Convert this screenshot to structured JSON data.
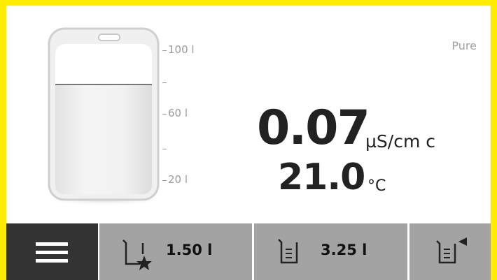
{
  "status": "Pure",
  "reading": {
    "value": "0.07",
    "unit": "µS/cm c"
  },
  "temperature": {
    "value": "21.0",
    "unit": "°C"
  },
  "tank_scale": [
    "100 l",
    "60 l",
    "20 l"
  ],
  "buttons": [
    "1.50 l",
    "3.25 l"
  ]
}
